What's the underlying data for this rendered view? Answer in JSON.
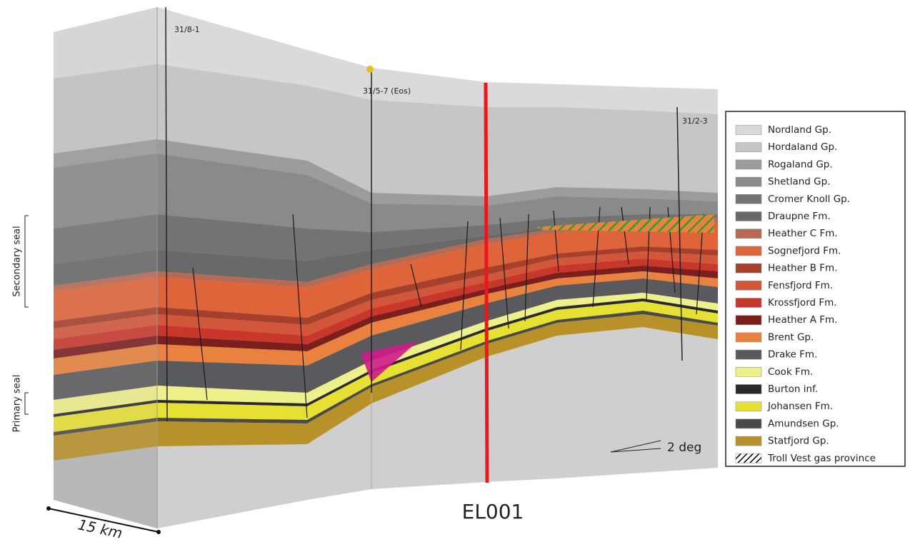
{
  "wells": [
    "31/8-1",
    "31/5-7 (Eos)",
    "31/2-3"
  ],
  "seal_labels": [
    "Secondary seal",
    "Primary seal"
  ],
  "scale": {
    "distance": "15 km",
    "angle": "2 deg"
  },
  "section_label": "EL001",
  "legend": [
    {
      "label": "Nordland Gp.",
      "color": "#dadada"
    },
    {
      "label": "Hordaland Gp.",
      "color": "#c6c6c6"
    },
    {
      "label": "Rogaland Gp.",
      "color": "#9c9c9c"
    },
    {
      "label": "Shetland Gp.",
      "color": "#8a8a8a"
    },
    {
      "label": "Cromer Knoll Gp.",
      "color": "#737373"
    },
    {
      "label": "Draupne Fm.",
      "color": "#696969"
    },
    {
      "label": "Heather C Fm.",
      "color": "#b86a52"
    },
    {
      "label": "Sognefjord Fm.",
      "color": "#e0643a"
    },
    {
      "label": "Heather B Fm.",
      "color": "#a6402c"
    },
    {
      "label": "Fensfjord Fm.",
      "color": "#d2573a"
    },
    {
      "label": "Krossfjord Fm.",
      "color": "#c9372a"
    },
    {
      "label": "Heather A Fm.",
      "color": "#7a1e1e"
    },
    {
      "label": "Brent Gp.",
      "color": "#e8823e"
    },
    {
      "label": "Drake Fm.",
      "color": "#5a5a5e"
    },
    {
      "label": "Cook Fm.",
      "color": "#eef08a"
    },
    {
      "label": "Burton inf.",
      "color": "#2a2a2e"
    },
    {
      "label": "Johansen Fm.",
      "color": "#e6e032"
    },
    {
      "label": "Amundsen Gp.",
      "color": "#4a4a4a"
    },
    {
      "label": "Statfjord Gp.",
      "color": "#b89128"
    },
    {
      "label": "Troll Vest gas province",
      "color": "#000000",
      "hatched": true
    }
  ]
}
